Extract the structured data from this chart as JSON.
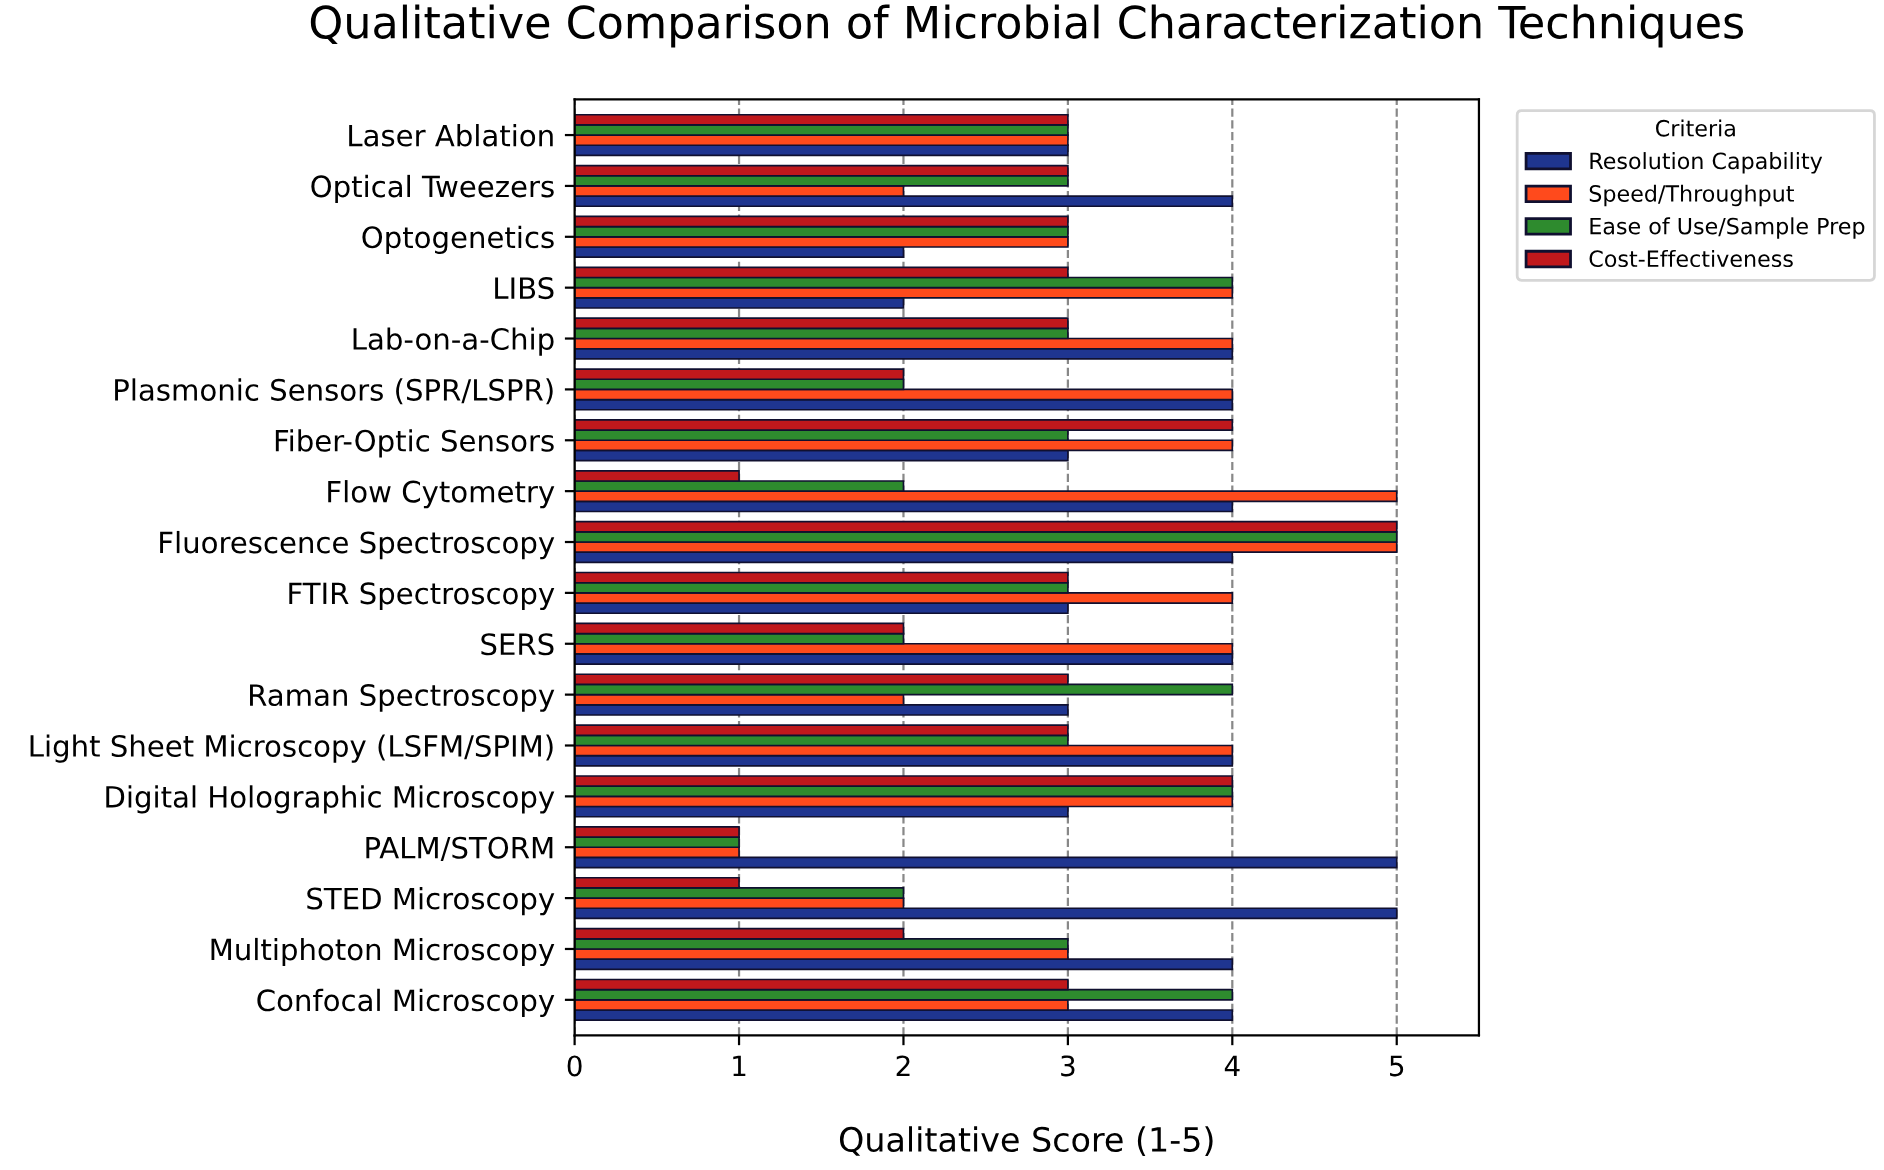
{
  "chart_data": {
    "type": "bar",
    "orientation": "horizontal",
    "title": "Qualitative Comparison of Microbial Characterization Techniques",
    "xlabel": "Qualitative Score (1-5)",
    "legend_title": "Criteria",
    "legend": "outside top right",
    "grid": "x",
    "categories": [
      "Laser Ablation",
      "Optical Tweezers",
      "Optogenetics",
      "LIBS",
      "Lab-on-a-Chip",
      "Plasmonic Sensors (SPR/LSPR)",
      "Fiber-Optic Sensors",
      "Flow Cytometry",
      "Fluorescence Spectroscopy",
      "FTIR Spectroscopy",
      "SERS",
      "Raman Spectroscopy",
      "Light Sheet Microscopy (LSFM/SPIM)",
      "Digital Holographic Microscopy",
      "PALM/STORM",
      "STED Microscopy",
      "Multiphoton Microscopy",
      "Confocal Microscopy"
    ],
    "xlim": [
      0,
      5.5
    ],
    "xticks": [
      0,
      1,
      2,
      3,
      4,
      5
    ],
    "series": [
      {
        "name": "Resolution Capability",
        "color": "#1f3590",
        "values": [
          3,
          4,
          2,
          2,
          4,
          4,
          3,
          4,
          4,
          3,
          4,
          3,
          4,
          3,
          5,
          5,
          4,
          4
        ]
      },
      {
        "name": "Speed/Throughput",
        "color": "#ff4a1c",
        "values": [
          3,
          2,
          3,
          4,
          4,
          4,
          4,
          5,
          5,
          4,
          4,
          2,
          4,
          4,
          1,
          2,
          3,
          3
        ]
      },
      {
        "name": "Ease of Use/Sample Prep",
        "color": "#2e8b2e",
        "values": [
          3,
          3,
          3,
          4,
          3,
          2,
          3,
          2,
          5,
          3,
          2,
          4,
          3,
          4,
          1,
          2,
          3,
          4
        ]
      },
      {
        "name": "Cost-Effectiveness",
        "color": "#c0181c",
        "values": [
          3,
          3,
          3,
          3,
          3,
          2,
          4,
          1,
          5,
          3,
          2,
          3,
          3,
          4,
          1,
          1,
          2,
          3
        ]
      }
    ]
  }
}
